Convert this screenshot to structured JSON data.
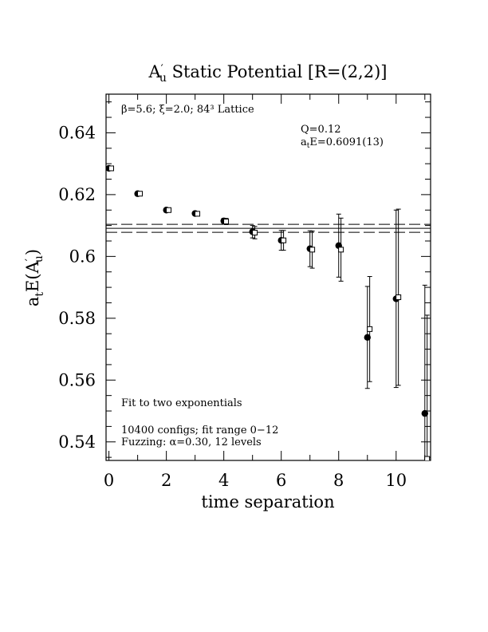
{
  "chart_data": {
    "type": "scatter",
    "title_main": "A",
    "title_prime": "′",
    "title_sub": "u",
    "title_rest": "Static Potential [R=(2,2)]",
    "xlabel": "time separation",
    "ylabel": {
      "prefix": "a",
      "prefix_sub": "t",
      "mid": "E(A",
      "prime": "′",
      "sub": "u",
      "suffix": ")"
    },
    "xlim": [
      -0.1,
      11.2
    ],
    "ylim": [
      0.534,
      0.6525
    ],
    "xticks": [
      {
        "value": 0,
        "label": "0"
      },
      {
        "value": 2,
        "label": "2"
      },
      {
        "value": 4,
        "label": "4"
      },
      {
        "value": 6,
        "label": "6"
      },
      {
        "value": 8,
        "label": "8"
      },
      {
        "value": 10,
        "label": "10"
      }
    ],
    "yticks": [
      {
        "value": 0.54,
        "label": "0.54"
      },
      {
        "value": 0.56,
        "label": "0.56"
      },
      {
        "value": 0.58,
        "label": "0.58"
      },
      {
        "value": 0.6,
        "label": "0.6"
      },
      {
        "value": 0.62,
        "label": "0.62"
      },
      {
        "value": 0.64,
        "label": "0.64"
      }
    ],
    "annotations": {
      "lattice": "β=5.6; ξ=2.0; 84³ Lattice",
      "q": "Q=0.12",
      "energy_prefix": "a",
      "energy_sub": "t",
      "energy_rest": "E=0.6091(13)",
      "fit": "Fit to two exponentials",
      "configs": "10400 configs; fit range 0−12",
      "fuzzing": "Fuzzing: α=0.30, 12 levels"
    },
    "fit": {
      "value": 0.6091,
      "error": 0.0013
    },
    "series": [
      {
        "marker": "filled-circle",
        "points": [
          {
            "x": 0,
            "y": 0.6285,
            "err": 0.0004
          },
          {
            "x": 1,
            "y": 0.6203,
            "err": 0.0004
          },
          {
            "x": 2,
            "y": 0.615,
            "err": 0.0005
          },
          {
            "x": 3,
            "y": 0.6139,
            "err": 0.0006
          },
          {
            "x": 4,
            "y": 0.6115,
            "err": 0.0008
          },
          {
            "x": 5,
            "y": 0.608,
            "err": 0.002
          },
          {
            "x": 6,
            "y": 0.6052,
            "err": 0.0032
          },
          {
            "x": 7,
            "y": 0.6025,
            "err": 0.0058
          },
          {
            "x": 8,
            "y": 0.6035,
            "err": 0.0102
          },
          {
            "x": 9,
            "y": 0.5738,
            "err": 0.0165
          },
          {
            "x": 10,
            "y": 0.5863,
            "err": 0.0287
          },
          {
            "x": 11,
            "y": 0.5492,
            "err": 0.0415
          }
        ]
      },
      {
        "marker": "open-square",
        "points": [
          {
            "x": 0.08,
            "y": 0.6285,
            "err": 0.0005
          },
          {
            "x": 1.08,
            "y": 0.6203,
            "err": 0.0005
          },
          {
            "x": 2.08,
            "y": 0.615,
            "err": 0.0006
          },
          {
            "x": 3.08,
            "y": 0.6138,
            "err": 0.0007
          },
          {
            "x": 4.08,
            "y": 0.6113,
            "err": 0.001
          },
          {
            "x": 5.08,
            "y": 0.6077,
            "err": 0.002
          },
          {
            "x": 6.08,
            "y": 0.6052,
            "err": 0.0032
          },
          {
            "x": 7.08,
            "y": 0.6022,
            "err": 0.006
          },
          {
            "x": 8.08,
            "y": 0.6022,
            "err": 0.0102
          },
          {
            "x": 9.08,
            "y": 0.5765,
            "err": 0.017
          },
          {
            "x": 10.08,
            "y": 0.5868,
            "err": 0.0285
          },
          {
            "x": 11.08,
            "y": 0.5345,
            "err": 0.0465
          }
        ]
      }
    ]
  }
}
